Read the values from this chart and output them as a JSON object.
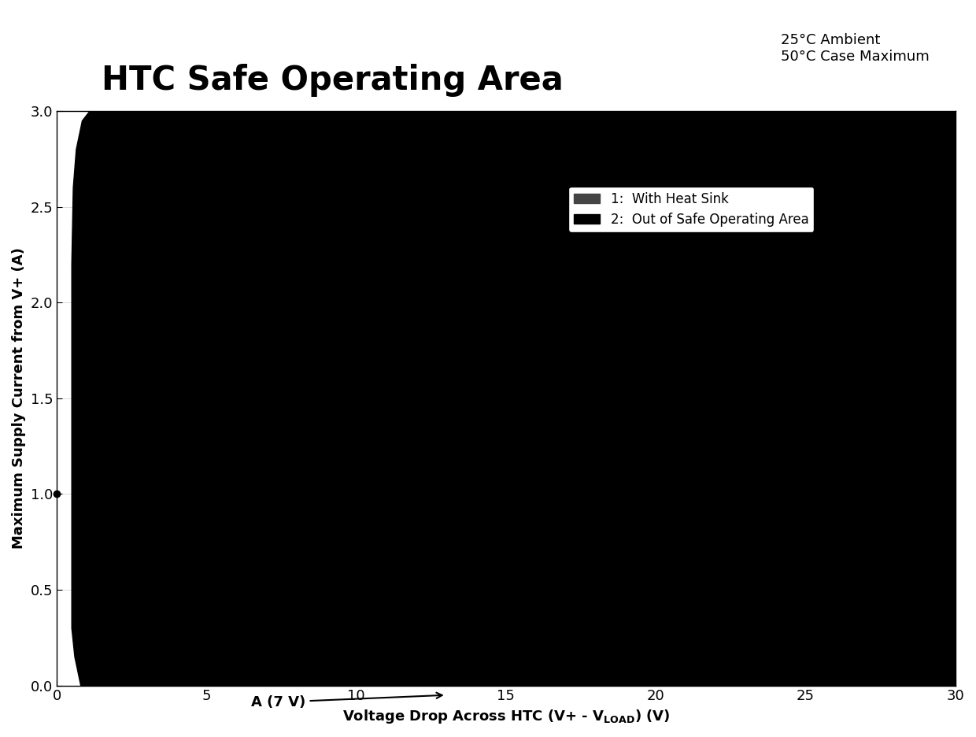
{
  "title": "HTC Safe Operating Area",
  "subtitle_line1": "25°C Ambient",
  "subtitle_line2": "50°C Case Maximum",
  "ylabel": "Maximum Supply Current from V+ (A)",
  "xlim": [
    0,
    30
  ],
  "ylim": [
    0,
    3
  ],
  "xticks": [
    0,
    5,
    10,
    15,
    20,
    25,
    30
  ],
  "yticks": [
    0,
    0.5,
    1,
    1.5,
    2,
    2.5,
    3
  ],
  "fill_color": "#000000",
  "legend_label1": "1:  With Heat Sink",
  "legend_label2": "2:  Out of Safe Operating Area",
  "annotation_text": "A (7 V)",
  "bg_color": "#ffffff",
  "title_fontsize": 30,
  "subtitle_fontsize": 13,
  "axis_fontsize": 13,
  "tick_fontsize": 13
}
